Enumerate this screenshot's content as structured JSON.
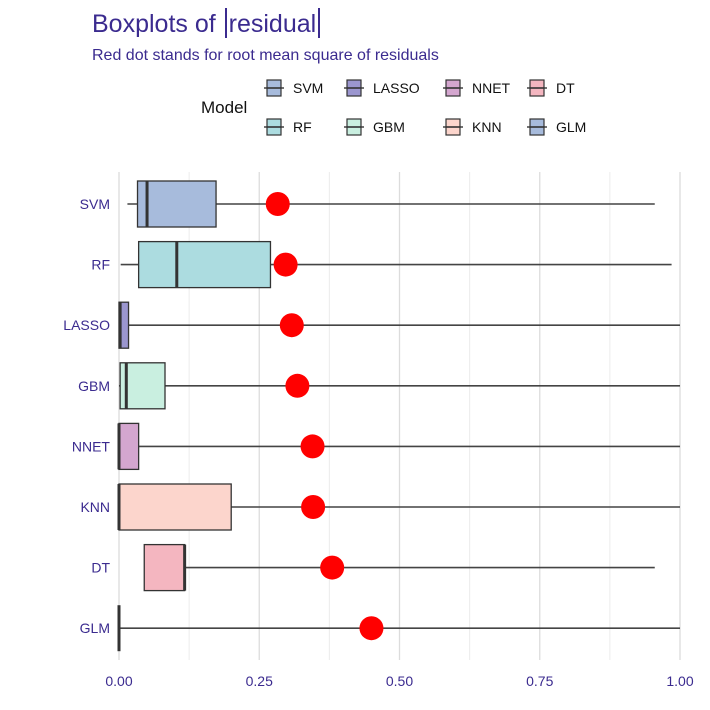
{
  "chart_data": {
    "type": "boxplot",
    "title_prefix": "Boxplots of ",
    "title_variable": "residual",
    "subtitle": "Red dot stands for root mean square of residuals",
    "legend_title": "Model",
    "legend": [
      {
        "name": "SVM",
        "color": "#a7bbdc"
      },
      {
        "name": "LASSO",
        "color": "#9b96cf"
      },
      {
        "name": "NNET",
        "color": "#d4a6cf"
      },
      {
        "name": "DT",
        "color": "#f4b6c0"
      },
      {
        "name": "RF",
        "color": "#acdce0"
      },
      {
        "name": "GBM",
        "color": "#c9efe0"
      },
      {
        "name": "KNN",
        "color": "#fcd5cc"
      },
      {
        "name": "GLM",
        "color": "#a7bbdc"
      }
    ],
    "xlim": [
      0,
      1.0
    ],
    "x_ticks": [
      "0.00",
      "0.25",
      "0.50",
      "0.75",
      "1.00"
    ],
    "x_tick_values": [
      0,
      0.25,
      0.5,
      0.75,
      1.0
    ],
    "series": [
      {
        "name": "SVM",
        "whisker_low": 0.015,
        "q1": 0.033,
        "median": 0.05,
        "q3": 0.173,
        "whisker_high": 0.955,
        "rmse": 0.283,
        "color": "#a7bbdc"
      },
      {
        "name": "RF",
        "whisker_low": 0.003,
        "q1": 0.035,
        "median": 0.103,
        "q3": 0.27,
        "whisker_high": 0.985,
        "rmse": 0.297,
        "color": "#acdce0"
      },
      {
        "name": "LASSO",
        "whisker_low": 0.0,
        "q1": 0.0,
        "median": 0.002,
        "q3": 0.017,
        "whisker_high": 1.0,
        "rmse": 0.308,
        "color": "#9b96cf"
      },
      {
        "name": "GBM",
        "whisker_low": 0.0,
        "q1": 0.002,
        "median": 0.013,
        "q3": 0.082,
        "whisker_high": 1.0,
        "rmse": 0.318,
        "color": "#c9efe0"
      },
      {
        "name": "NNET",
        "whisker_low": 0.0,
        "q1": 0.0,
        "median": 0.0,
        "q3": 0.035,
        "whisker_high": 1.0,
        "rmse": 0.345,
        "color": "#d4a6cf"
      },
      {
        "name": "KNN",
        "whisker_low": 0.0,
        "q1": 0.0,
        "median": 0.0,
        "q3": 0.2,
        "whisker_high": 1.0,
        "rmse": 0.346,
        "color": "#fcd5cc"
      },
      {
        "name": "DT",
        "whisker_low": 0.045,
        "q1": 0.045,
        "median": 0.117,
        "q3": 0.117,
        "whisker_high": 0.955,
        "rmse": 0.38,
        "color": "#f4b6c0"
      },
      {
        "name": "GLM",
        "whisker_low": 0.0,
        "q1": 0.0,
        "median": 0.0,
        "q3": 0.0,
        "whisker_high": 1.0,
        "rmse": 0.45,
        "color": "#a7bbdc"
      }
    ],
    "rmse_color": "#ff0000",
    "grid": true
  }
}
